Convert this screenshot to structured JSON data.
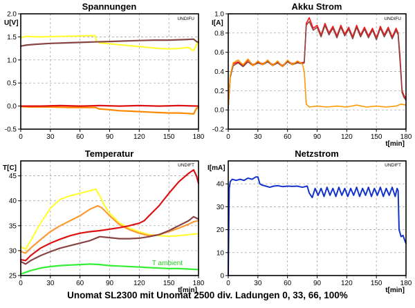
{
  "caption": "Unomat SL2300 mit Unomat 2500 div. Ladungen 0, 33,  66, 100%",
  "chart_data": [
    {
      "id": "spannungen",
      "type": "line",
      "title": "Spannungen",
      "ylabel": "U[V]",
      "xlabel": "",
      "tag": "UNDIFU",
      "xlim": [
        0,
        180
      ],
      "ylim": [
        -0.5,
        2.0
      ],
      "xticks": [
        0,
        30,
        60,
        90,
        120,
        150,
        180
      ],
      "yticks": [
        -0.5,
        0.0,
        0.5,
        1.0,
        1.5,
        2.0
      ],
      "ytick_labels": [
        "-0.5",
        "0.0",
        "0.5",
        "1.0",
        "1.5",
        "2.0"
      ],
      "grid": true,
      "series": [
        {
          "color": "#ffff33",
          "width": 2.2,
          "x": [
            0,
            5,
            20,
            40,
            60,
            75,
            77,
            80,
            90,
            100,
            110,
            120,
            130,
            140,
            150,
            160,
            170,
            175,
            180
          ],
          "y": [
            1.48,
            1.51,
            1.5,
            1.51,
            1.52,
            1.53,
            1.4,
            1.37,
            1.35,
            1.33,
            1.31,
            1.29,
            1.27,
            1.25,
            1.24,
            1.25,
            1.27,
            1.2,
            1.42
          ]
        },
        {
          "color": "#884444",
          "width": 2.2,
          "x": [
            0,
            5,
            15,
            30,
            45,
            60,
            75,
            90,
            105,
            120,
            135,
            150,
            165,
            175,
            178,
            180
          ],
          "y": [
            1.3,
            1.32,
            1.34,
            1.36,
            1.37,
            1.38,
            1.39,
            1.4,
            1.41,
            1.42,
            1.43,
            1.43,
            1.44,
            1.45,
            1.4,
            1.38
          ]
        },
        {
          "color": "#ff8800",
          "width": 2.2,
          "x": [
            0,
            10,
            30,
            50,
            70,
            76,
            79,
            90,
            100,
            110,
            120,
            130,
            140,
            150,
            160,
            170,
            175,
            178,
            180
          ],
          "y": [
            -0.01,
            -0.02,
            -0.02,
            -0.03,
            -0.03,
            -0.03,
            -0.06,
            -0.08,
            -0.1,
            -0.11,
            -0.12,
            -0.13,
            -0.14,
            -0.15,
            -0.15,
            -0.16,
            -0.17,
            -0.05,
            -0.03
          ]
        },
        {
          "color": "#dd1111",
          "width": 2.2,
          "x": [
            0,
            20,
            40,
            60,
            80,
            100,
            120,
            140,
            160,
            180
          ],
          "y": [
            0.0,
            0.0,
            0.01,
            0.0,
            0.01,
            0.0,
            0.01,
            0.0,
            0.01,
            0.0
          ]
        }
      ]
    },
    {
      "id": "akku-strom",
      "type": "line",
      "title": "Akku Strom",
      "ylabel": "I[A]",
      "xlabel": "t[min]",
      "tag": "UNDIFU",
      "xlim": [
        0,
        180
      ],
      "ylim": [
        -0.2,
        1.0
      ],
      "xticks": [
        0,
        30,
        60,
        90,
        120,
        150,
        180
      ],
      "yticks": [
        -0.2,
        0.0,
        0.2,
        0.4,
        0.6,
        0.8,
        1.0
      ],
      "ytick_labels": [
        "-0.2",
        "0.0",
        "0.2",
        "0.4",
        "0.6",
        "0.8",
        "1.0"
      ],
      "grid": true,
      "series": [
        {
          "color": "#ff1111",
          "width": 1.6,
          "x": [
            0,
            2,
            5,
            10,
            15,
            20,
            25,
            30,
            35,
            40,
            45,
            50,
            55,
            60,
            65,
            70,
            75,
            77,
            79,
            82,
            86,
            90,
            94,
            98,
            102,
            106,
            110,
            114,
            118,
            122,
            126,
            130,
            134,
            138,
            142,
            146,
            150,
            154,
            158,
            162,
            166,
            170,
            172,
            174,
            176,
            178,
            180
          ],
          "y": [
            0.02,
            0.35,
            0.48,
            0.5,
            0.46,
            0.52,
            0.47,
            0.5,
            0.48,
            0.51,
            0.47,
            0.5,
            0.46,
            0.51,
            0.48,
            0.5,
            0.49,
            0.5,
            0.9,
            0.96,
            0.85,
            0.88,
            0.78,
            0.9,
            0.8,
            0.87,
            0.77,
            0.88,
            0.79,
            0.86,
            0.76,
            0.88,
            0.78,
            0.86,
            0.77,
            0.85,
            0.75,
            0.87,
            0.78,
            0.86,
            0.76,
            0.85,
            0.8,
            0.55,
            0.2,
            0.15,
            0.12
          ]
        },
        {
          "color": "#884444",
          "width": 1.6,
          "x": [
            0,
            2,
            5,
            10,
            15,
            20,
            25,
            30,
            35,
            40,
            45,
            50,
            55,
            60,
            65,
            70,
            75,
            77,
            79,
            82,
            86,
            90,
            94,
            98,
            102,
            106,
            110,
            114,
            118,
            122,
            126,
            130,
            134,
            138,
            142,
            146,
            150,
            154,
            158,
            162,
            166,
            170,
            172,
            174,
            176,
            178,
            180
          ],
          "y": [
            0.02,
            0.34,
            0.46,
            0.49,
            0.45,
            0.5,
            0.46,
            0.49,
            0.47,
            0.5,
            0.46,
            0.49,
            0.45,
            0.5,
            0.47,
            0.49,
            0.48,
            0.49,
            0.88,
            0.92,
            0.83,
            0.86,
            0.76,
            0.88,
            0.78,
            0.85,
            0.75,
            0.86,
            0.77,
            0.84,
            0.74,
            0.86,
            0.76,
            0.84,
            0.75,
            0.83,
            0.73,
            0.85,
            0.76,
            0.84,
            0.74,
            0.83,
            0.78,
            0.5,
            0.18,
            0.13,
            0.1
          ]
        },
        {
          "color": "#ff9900",
          "width": 1.6,
          "x": [
            0,
            2,
            5,
            10,
            15,
            20,
            25,
            30,
            35,
            40,
            45,
            50,
            55,
            60,
            65,
            70,
            75,
            77,
            79,
            82,
            90,
            100,
            110,
            120,
            130,
            140,
            150,
            160,
            170,
            175,
            180
          ],
          "y": [
            0.03,
            0.36,
            0.49,
            0.52,
            0.47,
            0.53,
            0.46,
            0.51,
            0.47,
            0.52,
            0.46,
            0.51,
            0.45,
            0.52,
            0.47,
            0.51,
            0.48,
            0.4,
            0.06,
            0.03,
            0.04,
            0.03,
            0.04,
            0.03,
            0.05,
            0.03,
            0.04,
            0.03,
            0.04,
            0.06,
            0.05
          ]
        }
      ]
    },
    {
      "id": "temperatur",
      "type": "line",
      "title": "Temperatur",
      "ylabel": "T[C]",
      "xlabel": "t[min]",
      "tag": "UNDIFT",
      "annotation": "T ambient",
      "xlim": [
        0,
        180
      ],
      "ylim": [
        25,
        48
      ],
      "xticks": [
        0,
        30,
        60,
        90,
        120,
        150,
        180
      ],
      "yticks": [
        25,
        30,
        35,
        40,
        45
      ],
      "ytick_labels": [
        "25",
        "30",
        "35",
        "40",
        "45"
      ],
      "grid": true,
      "series": [
        {
          "color": "#ffff33",
          "width": 2.2,
          "x": [
            0,
            5,
            10,
            20,
            30,
            40,
            50,
            60,
            70,
            76,
            80,
            85,
            90,
            100,
            110,
            120,
            130,
            140,
            150,
            160,
            170,
            180
          ],
          "y": [
            30.8,
            30.3,
            32.0,
            35.5,
            38.5,
            40.3,
            41.0,
            41.5,
            42.0,
            42.3,
            41.0,
            39.0,
            37.5,
            35.5,
            34.5,
            33.8,
            33.2,
            33.0,
            32.9,
            33.0,
            33.2,
            33.4
          ]
        },
        {
          "color": "#ff9933",
          "width": 2.2,
          "x": [
            0,
            5,
            10,
            20,
            30,
            40,
            50,
            60,
            70,
            78,
            82,
            90,
            100,
            110,
            120,
            130,
            140,
            150,
            160,
            170,
            175,
            180
          ],
          "y": [
            29.8,
            29.5,
            30.5,
            32.2,
            33.8,
            35.0,
            36.0,
            37.0,
            38.3,
            39.0,
            38.6,
            37.0,
            35.2,
            34.2,
            33.5,
            33.0,
            33.2,
            33.8,
            34.5,
            35.3,
            35.8,
            36.0
          ]
        },
        {
          "color": "#dd1111",
          "width": 2.2,
          "x": [
            0,
            5,
            10,
            20,
            30,
            40,
            50,
            60,
            70,
            80,
            90,
            100,
            110,
            120,
            125,
            130,
            140,
            150,
            160,
            170,
            175,
            178,
            180
          ],
          "y": [
            28.2,
            28.0,
            29.0,
            30.5,
            31.5,
            32.3,
            33.0,
            33.5,
            33.8,
            34.0,
            34.3,
            34.6,
            35.0,
            35.5,
            36.0,
            37.0,
            39.0,
            41.5,
            43.8,
            45.5,
            46.2,
            45.0,
            43.5
          ]
        },
        {
          "color": "#884444",
          "width": 2.2,
          "x": [
            0,
            5,
            10,
            20,
            30,
            40,
            50,
            60,
            70,
            80,
            90,
            100,
            110,
            120,
            130,
            140,
            150,
            160,
            170,
            175,
            180
          ],
          "y": [
            27.8,
            27.3,
            28.0,
            29.0,
            29.8,
            30.5,
            31.0,
            31.5,
            32.0,
            32.8,
            32.6,
            32.4,
            32.4,
            32.5,
            32.8,
            33.2,
            34.0,
            35.0,
            36.0,
            36.8,
            36.3
          ]
        },
        {
          "color": "#33ee33",
          "width": 2.2,
          "x": [
            0,
            10,
            20,
            30,
            40,
            50,
            60,
            70,
            80,
            90,
            100,
            110,
            120,
            130,
            140,
            150,
            160,
            170,
            180
          ],
          "y": [
            25.3,
            26.0,
            26.5,
            26.8,
            27.0,
            27.1,
            27.2,
            27.3,
            27.2,
            27.0,
            26.9,
            26.8,
            26.7,
            26.6,
            26.5,
            26.4,
            26.4,
            26.3,
            26.2
          ]
        }
      ]
    },
    {
      "id": "netzstrom",
      "type": "line",
      "title": "Netzstrom",
      "ylabel": "I[mA]",
      "xlabel": "t[min]",
      "tag": "UNDIFT",
      "xlim": [
        0,
        180
      ],
      "ylim": [
        0,
        50
      ],
      "xticks": [
        0,
        30,
        60,
        90,
        120,
        150,
        180
      ],
      "yticks": [
        0,
        10,
        20,
        30,
        40
      ],
      "ytick_labels": [
        "0",
        "10",
        "20",
        "30",
        "40"
      ],
      "grid": true,
      "series": [
        {
          "color": "#1133cc",
          "width": 2.0,
          "x": [
            0,
            1,
            2,
            4,
            8,
            12,
            16,
            20,
            24,
            28,
            30,
            32,
            34,
            38,
            42,
            46,
            50,
            55,
            60,
            65,
            70,
            75,
            80,
            82,
            85,
            88,
            91,
            94,
            97,
            100,
            103,
            106,
            109,
            112,
            115,
            118,
            121,
            124,
            127,
            130,
            133,
            136,
            139,
            142,
            145,
            148,
            151,
            154,
            157,
            160,
            163,
            166,
            169,
            171,
            172,
            173,
            175,
            177,
            179,
            180
          ],
          "y": [
            0,
            38,
            41,
            42,
            41.5,
            42,
            41.5,
            42.5,
            42,
            43,
            43,
            40,
            39.5,
            39,
            38.5,
            39,
            39.2,
            38.8,
            39,
            38.9,
            39,
            38.5,
            39,
            36,
            34,
            38,
            35,
            38,
            34.5,
            38.5,
            35,
            38,
            34.5,
            38.5,
            35,
            38,
            34.5,
            38,
            35,
            38.5,
            34.5,
            38,
            35,
            38.5,
            34.5,
            38,
            35,
            38.5,
            34.5,
            38,
            35,
            38.5,
            34.5,
            38,
            37,
            20,
            17,
            17.5,
            15,
            14
          ]
        }
      ]
    }
  ]
}
